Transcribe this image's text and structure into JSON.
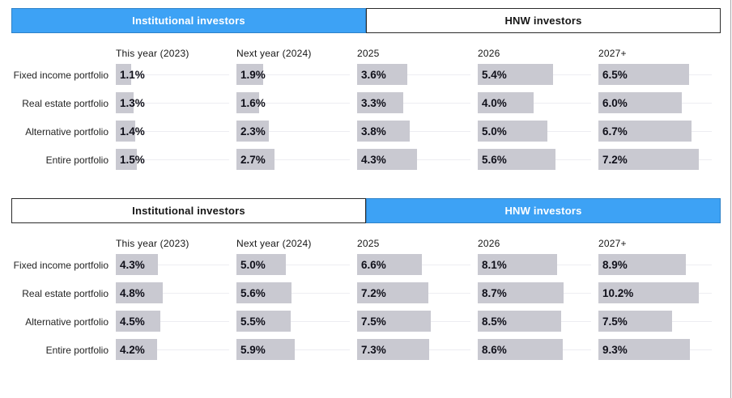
{
  "colors": {
    "accent_blue": "#3da2f5",
    "active_tab_border": "#2e82c9",
    "inactive_tab_border": "#2b2b2b",
    "bar_fill": "#c9c9d1",
    "value_text": "#10101a",
    "track_line": "#ededf2"
  },
  "panels": [
    {
      "tabs": [
        {
          "label": "Institutional investors",
          "active": true
        },
        {
          "label": "HNW investors",
          "active": false
        }
      ]
    },
    {
      "tabs": [
        {
          "label": "Institutional investors",
          "active": false
        },
        {
          "label": "HNW investors",
          "active": true
        }
      ]
    }
  ],
  "chart_data": [
    {
      "type": "bar",
      "orientation": "horizontal",
      "title": "Institutional investors",
      "unit": "%",
      "categories": [
        "This year (2023)",
        "Next year (2024)",
        "2025",
        "2026",
        "2027+"
      ],
      "series": [
        {
          "name": "Fixed income portfolio",
          "values": [
            1.1,
            1.9,
            3.6,
            5.4,
            6.5
          ]
        },
        {
          "name": "Real estate portfolio",
          "values": [
            1.3,
            1.6,
            3.3,
            4.0,
            6.0
          ]
        },
        {
          "name": "Alternative portfolio",
          "values": [
            1.4,
            2.3,
            3.8,
            5.0,
            6.7
          ]
        },
        {
          "name": "Entire portfolio",
          "values": [
            1.5,
            2.7,
            4.3,
            5.6,
            7.2
          ]
        }
      ],
      "legend": false,
      "grid": false
    },
    {
      "type": "bar",
      "orientation": "horizontal",
      "title": "HNW investors",
      "unit": "%",
      "categories": [
        "This year (2023)",
        "Next year (2024)",
        "2025",
        "2026",
        "2027+"
      ],
      "series": [
        {
          "name": "Fixed income portfolio",
          "values": [
            4.3,
            5.0,
            6.6,
            8.1,
            8.9
          ]
        },
        {
          "name": "Real estate portfolio",
          "values": [
            4.8,
            5.6,
            7.2,
            8.7,
            10.2
          ]
        },
        {
          "name": "Alternative portfolio",
          "values": [
            4.5,
            5.5,
            7.5,
            8.5,
            7.5
          ]
        },
        {
          "name": "Entire portfolio",
          "values": [
            4.2,
            5.9,
            7.3,
            8.6,
            9.3
          ]
        }
      ],
      "legend": false,
      "grid": false
    }
  ]
}
